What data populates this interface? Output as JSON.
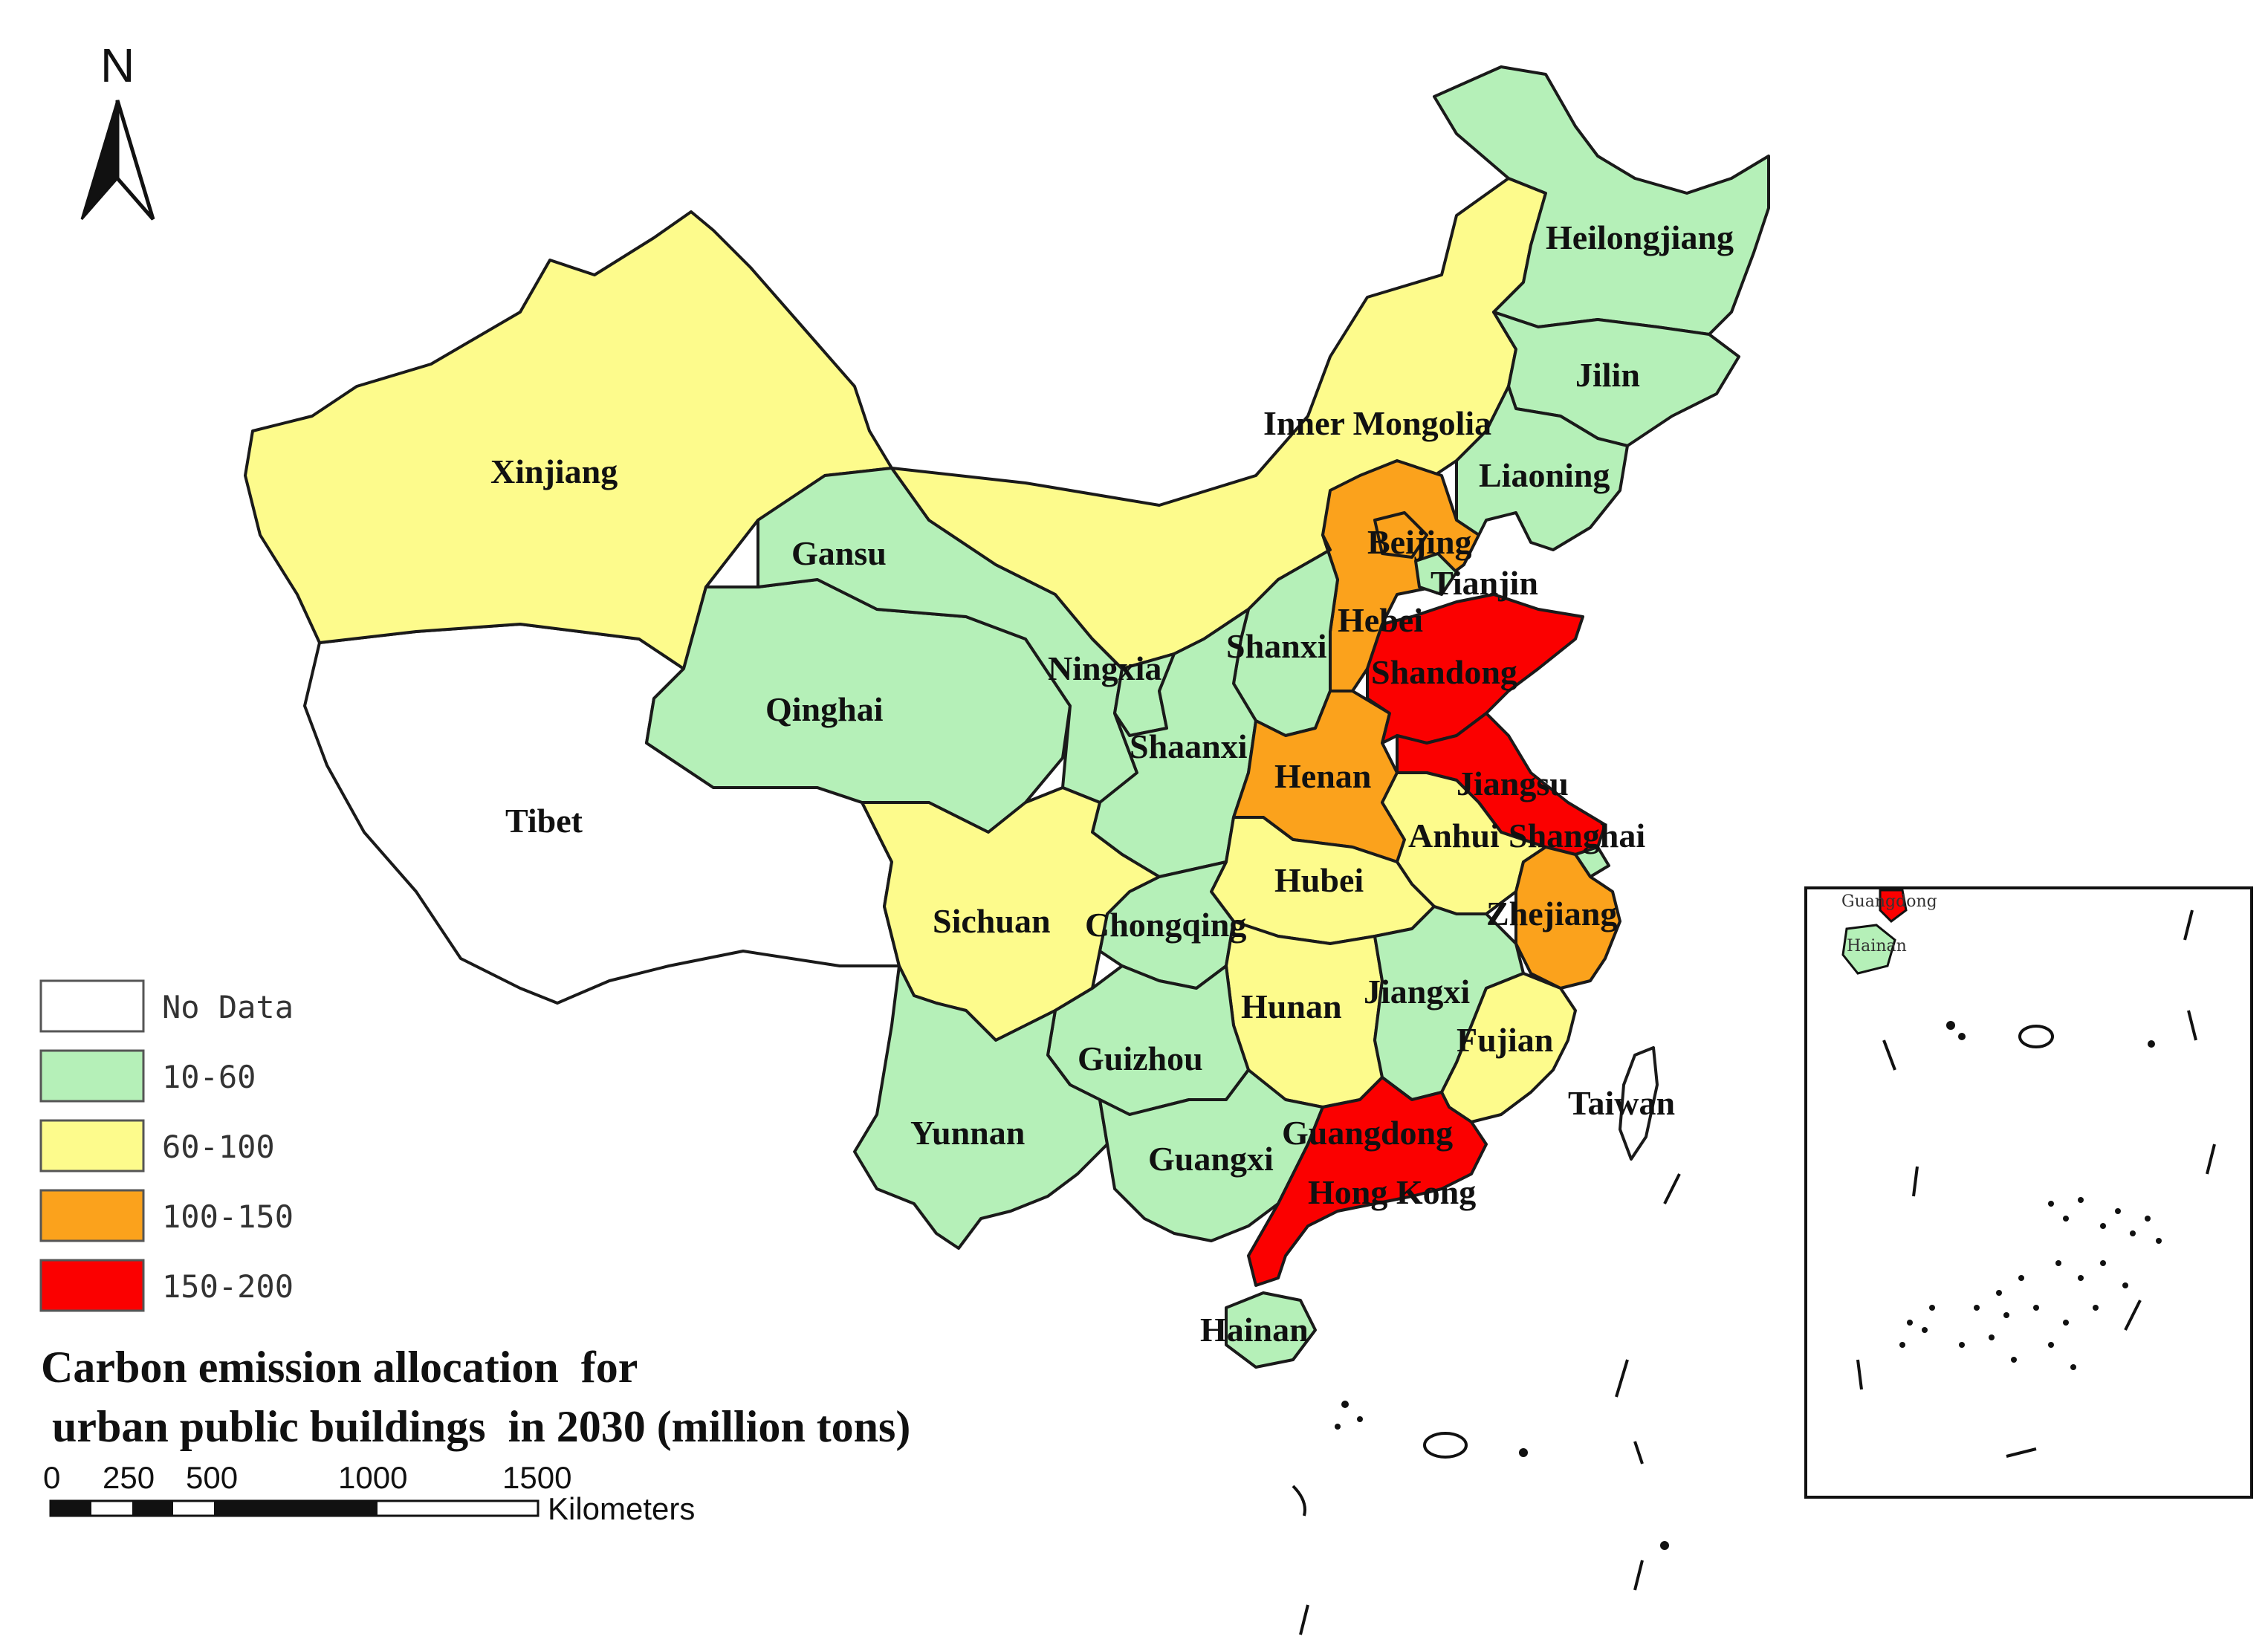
{
  "title_lines": [
    "Carbon emission allocation  for",
    " urban public buildings  in 2030 (million tons)"
  ],
  "north_arrow_label": "N",
  "legend": [
    {
      "label": "No Data",
      "color": "#ffffff"
    },
    {
      "label": "10-60",
      "color": "#b5f0b8"
    },
    {
      "label": "60-100",
      "color": "#fdfb8c"
    },
    {
      "label": "100-150",
      "color": "#fba21c"
    },
    {
      "label": "150-200",
      "color": "#fb0000"
    }
  ],
  "scale_bar": {
    "ticks": [
      "0",
      "250",
      "500",
      "1000",
      "1500"
    ],
    "unit": "Kilometers"
  },
  "provinces": [
    {
      "name": "Heilongjiang",
      "class": "10-60"
    },
    {
      "name": "Jilin",
      "class": "10-60"
    },
    {
      "name": "Liaoning",
      "class": "10-60"
    },
    {
      "name": "Inner Mongolia",
      "class": "60-100"
    },
    {
      "name": "Xinjiang",
      "class": "60-100"
    },
    {
      "name": "Gansu",
      "class": "10-60"
    },
    {
      "name": "Beijing",
      "class": "100-150"
    },
    {
      "name": "Tianjin",
      "class": "10-60"
    },
    {
      "name": "Hebei",
      "class": "100-150"
    },
    {
      "name": "Shanxi",
      "class": "10-60"
    },
    {
      "name": "Ningxia",
      "class": "10-60"
    },
    {
      "name": "Shandong",
      "class": "150-200"
    },
    {
      "name": "Qinghai",
      "class": "10-60"
    },
    {
      "name": "Shaanxi",
      "class": "10-60"
    },
    {
      "name": "Henan",
      "class": "100-150"
    },
    {
      "name": "Jiangsu",
      "class": "150-200"
    },
    {
      "name": "Tibet",
      "class": "No Data"
    },
    {
      "name": "Anhui",
      "class": "60-100"
    },
    {
      "name": "Shanghai",
      "class": "10-60"
    },
    {
      "name": "Hubei",
      "class": "60-100"
    },
    {
      "name": "Sichuan",
      "class": "60-100"
    },
    {
      "name": "Chongqing",
      "class": "10-60"
    },
    {
      "name": "Zhejiang",
      "class": "100-150"
    },
    {
      "name": "Hunan",
      "class": "60-100"
    },
    {
      "name": "Jiangxi",
      "class": "10-60"
    },
    {
      "name": "Guizhou",
      "class": "10-60"
    },
    {
      "name": "Fujian",
      "class": "60-100"
    },
    {
      "name": "Taiwan",
      "class": "No Data"
    },
    {
      "name": "Yunnan",
      "class": "10-60"
    },
    {
      "name": "Guangxi",
      "class": "10-60"
    },
    {
      "name": "Guangdong",
      "class": "150-200"
    },
    {
      "name": "Hong Kong",
      "class": "150-200"
    },
    {
      "name": "Hainan",
      "class": "10-60"
    }
  ],
  "inset_labels": [
    "Guangdong",
    "Hainan"
  ]
}
